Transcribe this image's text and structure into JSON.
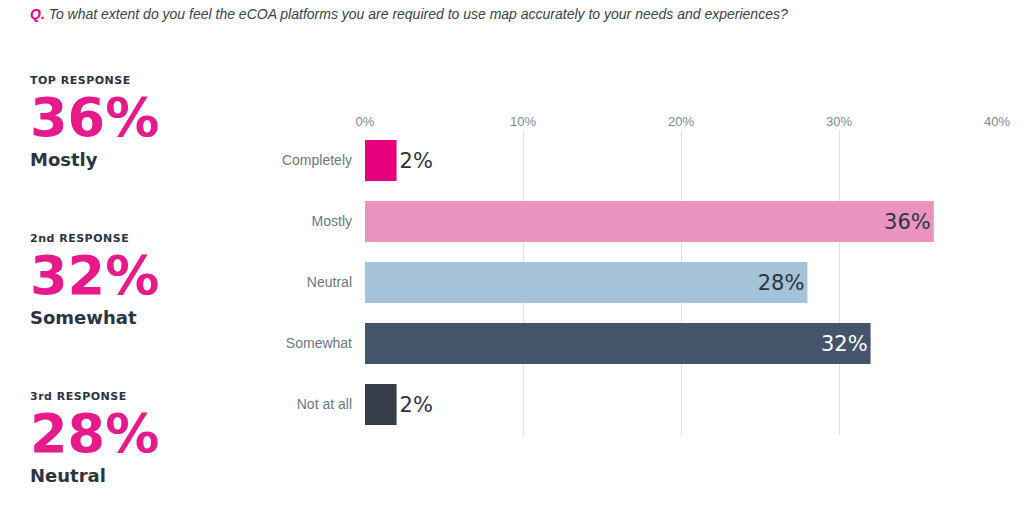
{
  "chart_data": {
    "type": "bar",
    "title": "Q. To what extent do you feel the eCOA platforms you are required to use map accurately to your needs and experiences?",
    "orientation": "horizontal",
    "categories": [
      "Completely",
      "Mostly",
      "Neutral",
      "Somewhat",
      "Not at all"
    ],
    "values": [
      2,
      36,
      28,
      32,
      2
    ],
    "value_labels": [
      "2%",
      "36%",
      "28%",
      "32%",
      "2%"
    ],
    "colors": [
      "#e6007e",
      "#ec94c0",
      "#a5c3d8",
      "#44546a",
      "#343d48"
    ],
    "xlim": [
      0,
      40
    ],
    "xticks": [
      {
        "value": 0,
        "label": "0%"
      },
      {
        "value": 10,
        "label": "10%"
      },
      {
        "value": 20,
        "label": "20%"
      },
      {
        "value": 30,
        "label": "30%"
      },
      {
        "value": 40,
        "label": "40%"
      }
    ],
    "grid": true,
    "data_labels": true
  },
  "callouts": [
    {
      "heading": "TOP RESPONSE",
      "value_label": "36%",
      "category": "Mostly"
    },
    {
      "heading": "2nd RESPONSE",
      "value_label": "32%",
      "category": "Somewhat"
    },
    {
      "heading": "3rd RESPONSE",
      "value_label": "28%",
      "category": "Neutral"
    }
  ]
}
